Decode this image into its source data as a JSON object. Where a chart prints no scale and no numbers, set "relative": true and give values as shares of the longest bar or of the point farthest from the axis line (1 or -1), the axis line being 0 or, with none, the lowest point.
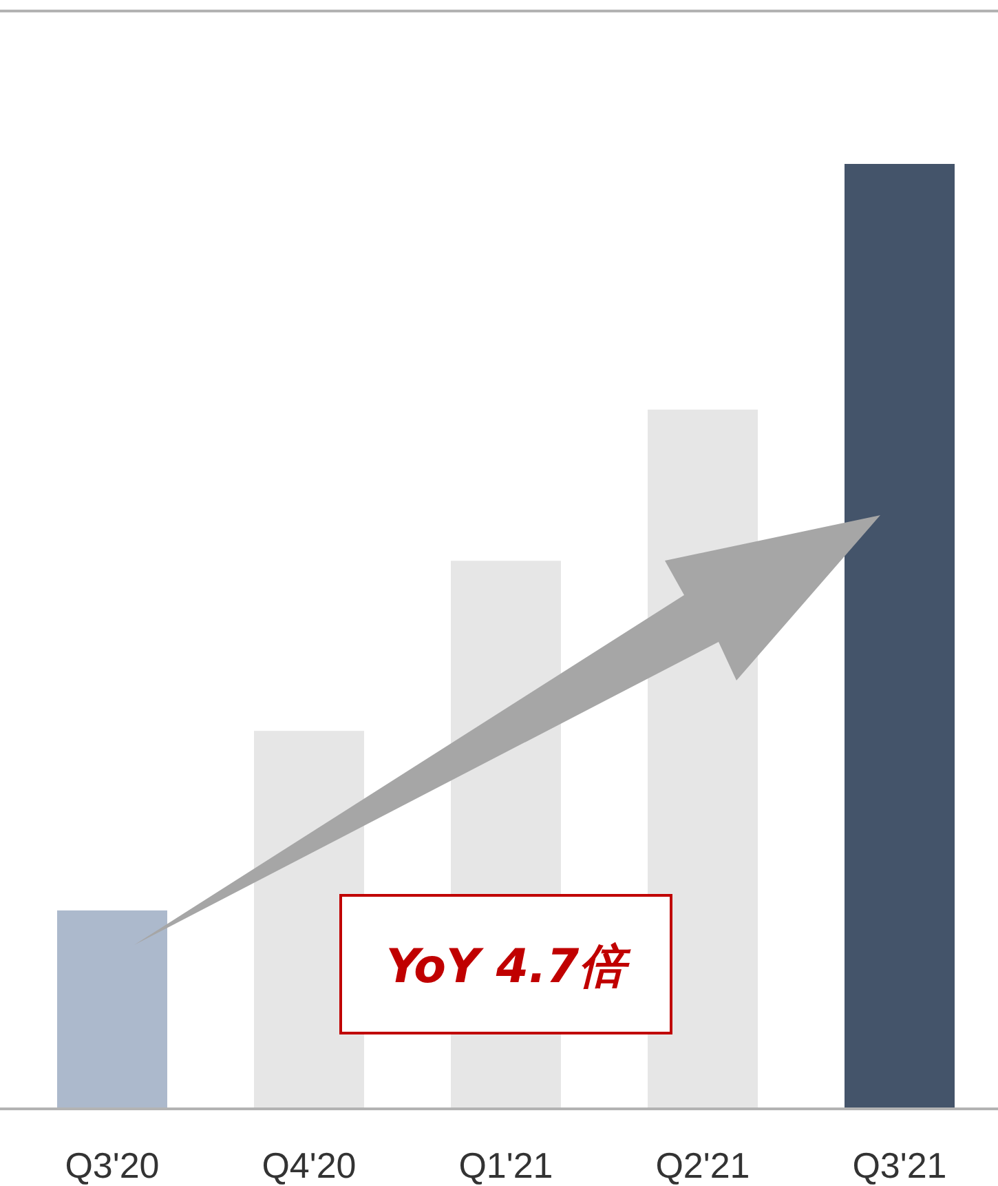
{
  "chart_data": {
    "type": "bar",
    "relative": true,
    "categories": [
      "Q3'20",
      "Q4'20",
      "Q1'21",
      "Q2'21",
      "Q3'21"
    ],
    "values": [
      0.21,
      0.4,
      0.58,
      0.74,
      1
    ],
    "colors": [
      "#acb9cc",
      "#e6e6e6",
      "#e6e6e6",
      "#e6e6e6",
      "#44546a"
    ],
    "annotations": [
      "YoY 4.7倍"
    ]
  }
}
